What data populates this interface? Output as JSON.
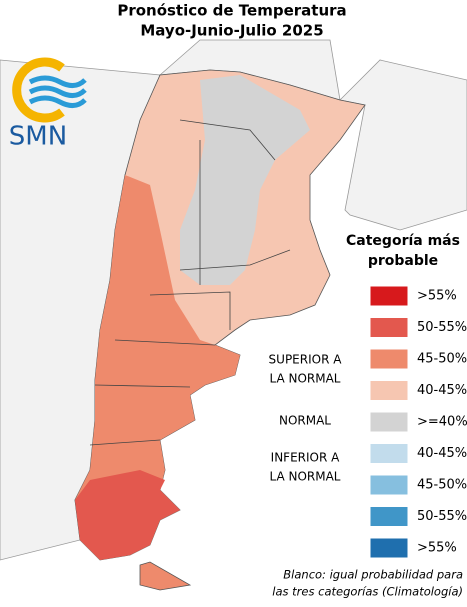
{
  "header": {
    "title": [
      "Pronóstico de Temperatura",
      "Mayo-Junio-Julio 2025"
    ]
  },
  "logo": {
    "text": "SMN"
  },
  "legend": {
    "title": [
      "Categoría más",
      "probable"
    ],
    "items": [
      {
        "label": ">55%",
        "color": "#d7191c"
      },
      {
        "label": "50-55%",
        "color": "#e3584e"
      },
      {
        "label": "45-50%",
        "color": "#ee8a6c"
      },
      {
        "label": "40-45%",
        "color": "#f6c6b1"
      },
      {
        "label": ">=40%",
        "color": "#d3d3d3"
      },
      {
        "label": "40-45%",
        "color": "#c2dcec"
      },
      {
        "label": "45-50%",
        "color": "#86bfdf"
      },
      {
        "label": "50-55%",
        "color": "#4096c8"
      },
      {
        "label": ">55%",
        "color": "#1f6fae"
      }
    ],
    "groups": [
      [
        "SUPERIOR A",
        "LA NORMAL"
      ],
      [
        "NORMAL"
      ],
      [
        "INFERIOR A",
        "LA NORMAL"
      ]
    ]
  },
  "footnote": [
    "Blanco: igual probabilidad para",
    "las tres categorías (Climatología)"
  ]
}
